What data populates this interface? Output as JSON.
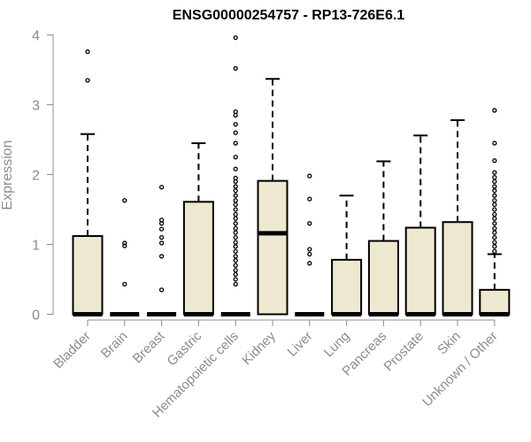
{
  "chart_data": {
    "type": "boxplot",
    "title": "ENSG00000254757 - RP13-726E6.1",
    "ylabel": "Expression",
    "xlabel": "",
    "ylim": [
      0,
      4
    ],
    "yticks": [
      0,
      1,
      2,
      3,
      4
    ],
    "grid": false,
    "colors": {
      "box_fill": "#efe8d0",
      "stroke": "#000000",
      "axis": "#8c8c8c"
    },
    "categories": [
      "Bladder",
      "Brain",
      "Breast",
      "Gastric",
      "Hematopoietic cells",
      "Kidney",
      "Liver",
      "Lung",
      "Pancreas",
      "Prostate",
      "Skin",
      "Unknown / Other"
    ],
    "boxes": [
      {
        "category": "Bladder",
        "q1": 0,
        "median": 0,
        "q3": 1.12,
        "whisker_low": 0,
        "whisker_high": 2.58,
        "outliers": [
          3.35,
          3.76
        ]
      },
      {
        "category": "Brain",
        "q1": 0,
        "median": 0,
        "q3": 0,
        "whisker_low": 0,
        "whisker_high": 0,
        "outliers": [
          0.43,
          0.98,
          1.02,
          1.63
        ]
      },
      {
        "category": "Breast",
        "q1": 0,
        "median": 0,
        "q3": 0,
        "whisker_low": 0,
        "whisker_high": 0,
        "outliers": [
          0.35,
          0.83,
          1.02,
          1.1,
          1.22,
          1.3,
          1.35,
          1.82
        ]
      },
      {
        "category": "Gastric",
        "q1": 0,
        "median": 0,
        "q3": 1.61,
        "whisker_low": 0,
        "whisker_high": 2.45,
        "outliers": []
      },
      {
        "category": "Hematopoietic cells",
        "q1": 0,
        "median": 0,
        "q3": 0,
        "whisker_low": 0,
        "whisker_high": 0,
        "outliers": [
          0.43,
          0.5,
          0.57,
          0.63,
          0.7,
          0.77,
          0.83,
          0.9,
          0.97,
          1.03,
          1.1,
          1.17,
          1.23,
          1.3,
          1.37,
          1.43,
          1.5,
          1.57,
          1.63,
          1.7,
          1.77,
          1.83,
          1.9,
          1.95,
          2.08,
          2.25,
          2.45,
          2.6,
          2.72,
          2.85,
          2.9,
          3.52,
          3.96
        ]
      },
      {
        "category": "Kidney",
        "q1": 0,
        "median": 1.16,
        "q3": 1.91,
        "whisker_low": 0,
        "whisker_high": 3.37,
        "outliers": []
      },
      {
        "category": "Liver",
        "q1": 0,
        "median": 0,
        "q3": 0,
        "whisker_low": 0,
        "whisker_high": 0,
        "outliers": [
          0.73,
          0.86,
          0.93,
          1.3,
          1.65,
          1.98
        ]
      },
      {
        "category": "Lung",
        "q1": 0,
        "median": 0,
        "q3": 0.78,
        "whisker_low": 0,
        "whisker_high": 1.7,
        "outliers": []
      },
      {
        "category": "Pancreas",
        "q1": 0,
        "median": 0,
        "q3": 1.05,
        "whisker_low": 0,
        "whisker_high": 2.19,
        "outliers": []
      },
      {
        "category": "Prostate",
        "q1": 0,
        "median": 0,
        "q3": 1.24,
        "whisker_low": 0,
        "whisker_high": 2.56,
        "outliers": []
      },
      {
        "category": "Skin",
        "q1": 0,
        "median": 0,
        "q3": 1.32,
        "whisker_low": 0,
        "whisker_high": 2.78,
        "outliers": []
      },
      {
        "category": "Unknown / Other",
        "q1": 0,
        "median": 0,
        "q3": 0.35,
        "whisker_low": 0,
        "whisker_high": 0.86,
        "outliers": [
          0.9,
          0.97,
          1.03,
          1.1,
          1.17,
          1.23,
          1.3,
          1.37,
          1.43,
          1.5,
          1.57,
          1.63,
          1.7,
          1.77,
          1.83,
          1.9,
          1.96,
          2.03,
          2.2,
          2.45,
          2.92
        ]
      }
    ]
  }
}
